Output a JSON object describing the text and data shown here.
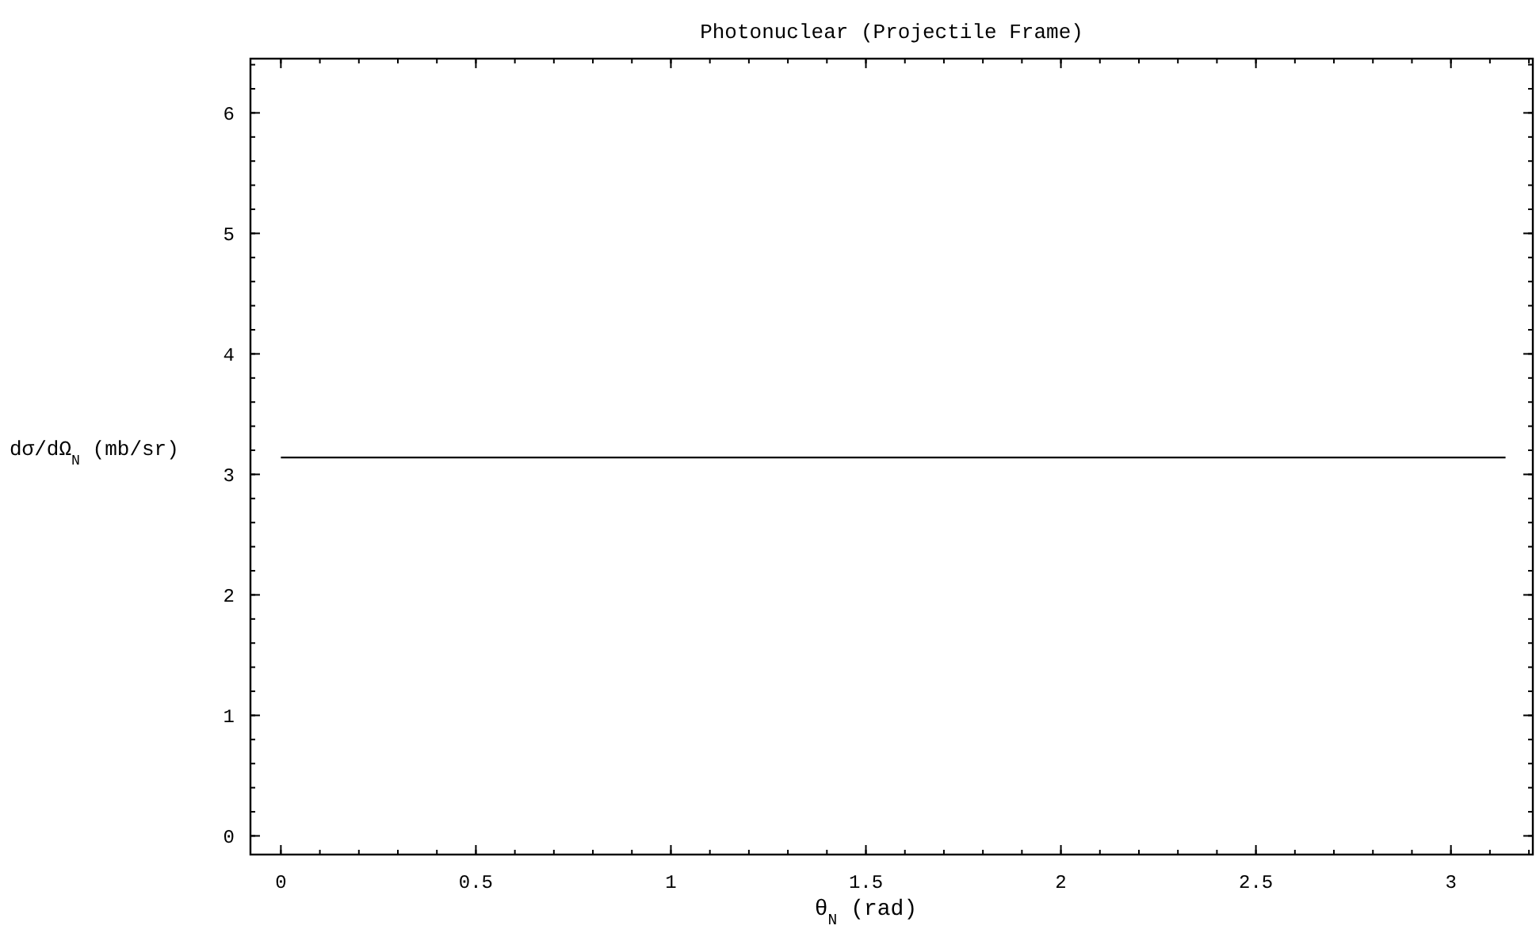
{
  "chart_data": {
    "type": "line",
    "title": "Photonuclear (Projectile Frame)",
    "xlabel": "θ$_{N}$ (rad)",
    "ylabel": "dσ/dΩ$_{N}$ (mb/sr)",
    "xlim": [
      -0.078,
      3.21
    ],
    "ylim": [
      -0.155,
      6.45
    ],
    "xticks": [
      0,
      0.5,
      1,
      1.5,
      2,
      2.5,
      3
    ],
    "yticks": [
      0,
      1,
      2,
      3,
      4,
      5,
      6
    ],
    "series": [
      {
        "color": "#000000",
        "x": [
          0,
          3.14
        ],
        "values": [
          3.14,
          3.14
        ]
      }
    ],
    "grid": false,
    "line_style": "solid",
    "marker": "none"
  }
}
